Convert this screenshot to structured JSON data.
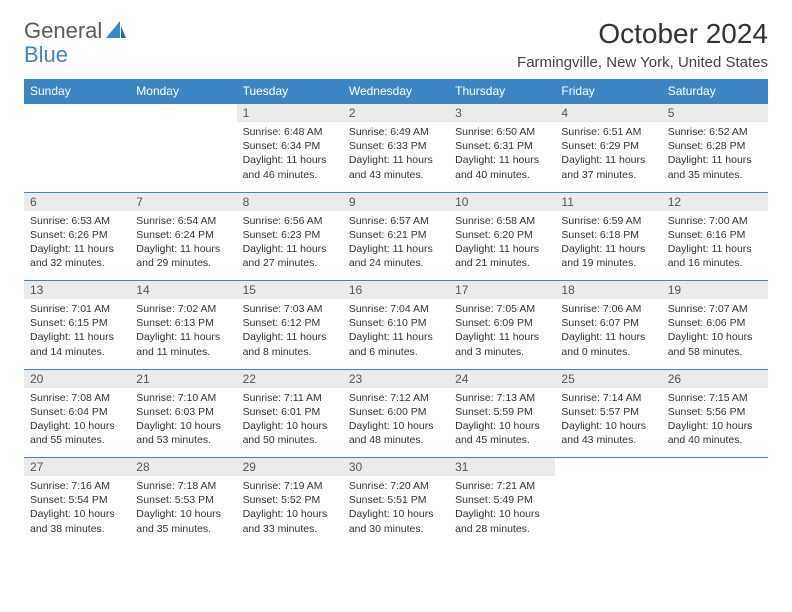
{
  "logo": {
    "part1": "General",
    "part2": "Blue"
  },
  "title": "October 2024",
  "location": "Farmingville, New York, United States",
  "header_bg": "#3d86c6",
  "header_fg": "#ffffff",
  "daynum_bg": "#ebebeb",
  "border_color": "#3d86c6",
  "text_color": "#333333",
  "font_size_body": 10.5,
  "weekdays": [
    "Sunday",
    "Monday",
    "Tuesday",
    "Wednesday",
    "Thursday",
    "Friday",
    "Saturday"
  ],
  "weeks": [
    {
      "nums": [
        "",
        "",
        "1",
        "2",
        "3",
        "4",
        "5"
      ],
      "cells": [
        {},
        {},
        {
          "sunrise": "Sunrise: 6:48 AM",
          "sunset": "Sunset: 6:34 PM",
          "day1": "Daylight: 11 hours",
          "day2": "and 46 minutes."
        },
        {
          "sunrise": "Sunrise: 6:49 AM",
          "sunset": "Sunset: 6:33 PM",
          "day1": "Daylight: 11 hours",
          "day2": "and 43 minutes."
        },
        {
          "sunrise": "Sunrise: 6:50 AM",
          "sunset": "Sunset: 6:31 PM",
          "day1": "Daylight: 11 hours",
          "day2": "and 40 minutes."
        },
        {
          "sunrise": "Sunrise: 6:51 AM",
          "sunset": "Sunset: 6:29 PM",
          "day1": "Daylight: 11 hours",
          "day2": "and 37 minutes."
        },
        {
          "sunrise": "Sunrise: 6:52 AM",
          "sunset": "Sunset: 6:28 PM",
          "day1": "Daylight: 11 hours",
          "day2": "and 35 minutes."
        }
      ]
    },
    {
      "nums": [
        "6",
        "7",
        "8",
        "9",
        "10",
        "11",
        "12"
      ],
      "cells": [
        {
          "sunrise": "Sunrise: 6:53 AM",
          "sunset": "Sunset: 6:26 PM",
          "day1": "Daylight: 11 hours",
          "day2": "and 32 minutes."
        },
        {
          "sunrise": "Sunrise: 6:54 AM",
          "sunset": "Sunset: 6:24 PM",
          "day1": "Daylight: 11 hours",
          "day2": "and 29 minutes."
        },
        {
          "sunrise": "Sunrise: 6:56 AM",
          "sunset": "Sunset: 6:23 PM",
          "day1": "Daylight: 11 hours",
          "day2": "and 27 minutes."
        },
        {
          "sunrise": "Sunrise: 6:57 AM",
          "sunset": "Sunset: 6:21 PM",
          "day1": "Daylight: 11 hours",
          "day2": "and 24 minutes."
        },
        {
          "sunrise": "Sunrise: 6:58 AM",
          "sunset": "Sunset: 6:20 PM",
          "day1": "Daylight: 11 hours",
          "day2": "and 21 minutes."
        },
        {
          "sunrise": "Sunrise: 6:59 AM",
          "sunset": "Sunset: 6:18 PM",
          "day1": "Daylight: 11 hours",
          "day2": "and 19 minutes."
        },
        {
          "sunrise": "Sunrise: 7:00 AM",
          "sunset": "Sunset: 6:16 PM",
          "day1": "Daylight: 11 hours",
          "day2": "and 16 minutes."
        }
      ]
    },
    {
      "nums": [
        "13",
        "14",
        "15",
        "16",
        "17",
        "18",
        "19"
      ],
      "cells": [
        {
          "sunrise": "Sunrise: 7:01 AM",
          "sunset": "Sunset: 6:15 PM",
          "day1": "Daylight: 11 hours",
          "day2": "and 14 minutes."
        },
        {
          "sunrise": "Sunrise: 7:02 AM",
          "sunset": "Sunset: 6:13 PM",
          "day1": "Daylight: 11 hours",
          "day2": "and 11 minutes."
        },
        {
          "sunrise": "Sunrise: 7:03 AM",
          "sunset": "Sunset: 6:12 PM",
          "day1": "Daylight: 11 hours",
          "day2": "and 8 minutes."
        },
        {
          "sunrise": "Sunrise: 7:04 AM",
          "sunset": "Sunset: 6:10 PM",
          "day1": "Daylight: 11 hours",
          "day2": "and 6 minutes."
        },
        {
          "sunrise": "Sunrise: 7:05 AM",
          "sunset": "Sunset: 6:09 PM",
          "day1": "Daylight: 11 hours",
          "day2": "and 3 minutes."
        },
        {
          "sunrise": "Sunrise: 7:06 AM",
          "sunset": "Sunset: 6:07 PM",
          "day1": "Daylight: 11 hours",
          "day2": "and 0 minutes."
        },
        {
          "sunrise": "Sunrise: 7:07 AM",
          "sunset": "Sunset: 6:06 PM",
          "day1": "Daylight: 10 hours",
          "day2": "and 58 minutes."
        }
      ]
    },
    {
      "nums": [
        "20",
        "21",
        "22",
        "23",
        "24",
        "25",
        "26"
      ],
      "cells": [
        {
          "sunrise": "Sunrise: 7:08 AM",
          "sunset": "Sunset: 6:04 PM",
          "day1": "Daylight: 10 hours",
          "day2": "and 55 minutes."
        },
        {
          "sunrise": "Sunrise: 7:10 AM",
          "sunset": "Sunset: 6:03 PM",
          "day1": "Daylight: 10 hours",
          "day2": "and 53 minutes."
        },
        {
          "sunrise": "Sunrise: 7:11 AM",
          "sunset": "Sunset: 6:01 PM",
          "day1": "Daylight: 10 hours",
          "day2": "and 50 minutes."
        },
        {
          "sunrise": "Sunrise: 7:12 AM",
          "sunset": "Sunset: 6:00 PM",
          "day1": "Daylight: 10 hours",
          "day2": "and 48 minutes."
        },
        {
          "sunrise": "Sunrise: 7:13 AM",
          "sunset": "Sunset: 5:59 PM",
          "day1": "Daylight: 10 hours",
          "day2": "and 45 minutes."
        },
        {
          "sunrise": "Sunrise: 7:14 AM",
          "sunset": "Sunset: 5:57 PM",
          "day1": "Daylight: 10 hours",
          "day2": "and 43 minutes."
        },
        {
          "sunrise": "Sunrise: 7:15 AM",
          "sunset": "Sunset: 5:56 PM",
          "day1": "Daylight: 10 hours",
          "day2": "and 40 minutes."
        }
      ]
    },
    {
      "nums": [
        "27",
        "28",
        "29",
        "30",
        "31",
        "",
        ""
      ],
      "cells": [
        {
          "sunrise": "Sunrise: 7:16 AM",
          "sunset": "Sunset: 5:54 PM",
          "day1": "Daylight: 10 hours",
          "day2": "and 38 minutes."
        },
        {
          "sunrise": "Sunrise: 7:18 AM",
          "sunset": "Sunset: 5:53 PM",
          "day1": "Daylight: 10 hours",
          "day2": "and 35 minutes."
        },
        {
          "sunrise": "Sunrise: 7:19 AM",
          "sunset": "Sunset: 5:52 PM",
          "day1": "Daylight: 10 hours",
          "day2": "and 33 minutes."
        },
        {
          "sunrise": "Sunrise: 7:20 AM",
          "sunset": "Sunset: 5:51 PM",
          "day1": "Daylight: 10 hours",
          "day2": "and 30 minutes."
        },
        {
          "sunrise": "Sunrise: 7:21 AM",
          "sunset": "Sunset: 5:49 PM",
          "day1": "Daylight: 10 hours",
          "day2": "and 28 minutes."
        },
        {},
        {}
      ]
    }
  ]
}
